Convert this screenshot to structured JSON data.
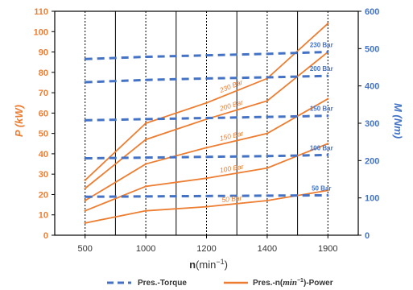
{
  "chart_data": {
    "type": "line",
    "x": [
      500,
      1000,
      1200,
      1400,
      1900
    ],
    "xlabel_main": "n",
    "xlabel_unit": "(min",
    "xlabel_exp": "−1",
    "xlabel_close": ")",
    "ylabel_left": "P (kW)",
    "ylabel_right": "M (Nm)",
    "ylim_left": [
      0,
      110
    ],
    "ylim_right": [
      0,
      600
    ],
    "yticks_left": [
      0,
      10,
      20,
      30,
      40,
      50,
      60,
      70,
      80,
      90,
      100,
      110
    ],
    "yticks_right": [
      0,
      100,
      200,
      300,
      400,
      500,
      600
    ],
    "grid": "vertical",
    "power_series": [
      {
        "name": "230 Bar",
        "values": [
          27,
          55,
          65,
          77,
          104
        ]
      },
      {
        "name": "200 Bar",
        "values": [
          23,
          47,
          57,
          66,
          90
        ]
      },
      {
        "name": "150 Bar",
        "values": [
          17,
          35,
          43,
          50,
          67
        ]
      },
      {
        "name": "100 Bar",
        "values": [
          12,
          24,
          28,
          33,
          45
        ]
      },
      {
        "name": "50 Bar",
        "values": [
          6,
          12,
          14,
          17,
          22
        ]
      }
    ],
    "torque_series": [
      {
        "name": "230 Bar",
        "values": [
          472,
          478,
          482,
          486,
          491
        ]
      },
      {
        "name": "200 Bar",
        "values": [
          410,
          416,
          420,
          423,
          427
        ]
      },
      {
        "name": "150 Bar",
        "values": [
          308,
          311,
          314,
          317,
          320
        ]
      },
      {
        "name": "100 Bar",
        "values": [
          206,
          208,
          210,
          212,
          215
        ]
      },
      {
        "name": "50 Bar",
        "values": [
          103,
          104,
          105,
          106,
          107
        ]
      }
    ],
    "legend": {
      "torque": "Pres.-Torque",
      "power_prefix": "Pres.-n(",
      "power_italic": "min",
      "power_exp": "−1",
      "power_suffix": ")-Power"
    },
    "legend_position": "bottom",
    "colors": {
      "power": "#ED7D31",
      "torque": "#4472C4"
    }
  }
}
